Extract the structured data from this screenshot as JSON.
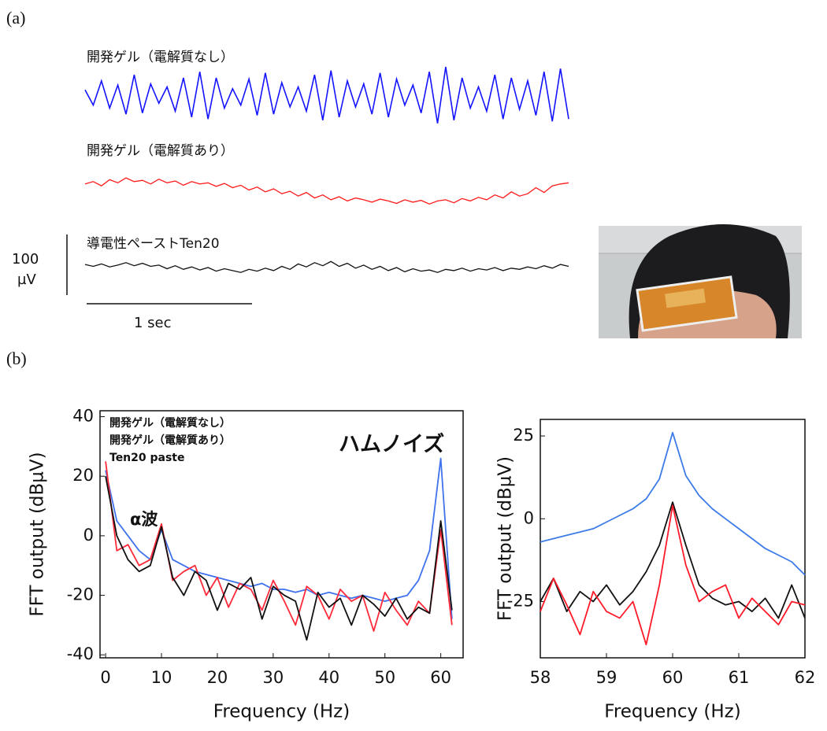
{
  "chart_data": [
    {
      "type": "trace",
      "panel_label": "(a)",
      "series": [
        {
          "name": "開発ゲル（電解質なし）",
          "color": "#1414ff",
          "values": [
            10,
            -15,
            25,
            -20,
            18,
            -30,
            35,
            -28,
            20,
            -12,
            15,
            -25,
            30,
            -35,
            40,
            -38,
            30,
            -20,
            12,
            -15,
            28,
            -32,
            38,
            -30,
            22,
            -18,
            15,
            -25,
            35,
            -40,
            42,
            -35,
            25,
            -18,
            20,
            -30,
            38,
            -35,
            28,
            -15,
            18,
            -28,
            40,
            -45,
            48,
            -40,
            30,
            -20,
            15,
            -25,
            35,
            -38,
            30,
            -22,
            25,
            -32,
            40,
            -42,
            45,
            -38
          ]
        },
        {
          "name": "開発ゲル（電解質あり）",
          "color": "#ff1a1a",
          "values": [
            8,
            12,
            5,
            15,
            10,
            18,
            12,
            14,
            8,
            16,
            10,
            13,
            6,
            12,
            8,
            10,
            4,
            9,
            2,
            6,
            -2,
            3,
            -5,
            0,
            -8,
            -4,
            -12,
            -6,
            -15,
            -10,
            -18,
            -13,
            -20,
            -15,
            -18,
            -22,
            -17,
            -20,
            -24,
            -18,
            -22,
            -19,
            -25,
            -20,
            -18,
            -23,
            -16,
            -20,
            -14,
            -18,
            -10,
            -15,
            -5,
            -12,
            -8,
            2,
            -6,
            5,
            8,
            10
          ]
        },
        {
          "name": "導電性ペーストTen20",
          "color": "#111111",
          "values": [
            5,
            2,
            6,
            1,
            4,
            8,
            3,
            7,
            2,
            4,
            -2,
            3,
            -3,
            1,
            -4,
            0,
            -6,
            -2,
            -5,
            -8,
            -3,
            -6,
            -1,
            -5,
            2,
            -3,
            6,
            1,
            8,
            3,
            10,
            2,
            7,
            -1,
            4,
            -3,
            2,
            -5,
            0,
            -7,
            -2,
            -6,
            -4,
            -8,
            -3,
            -5,
            -1,
            -6,
            -2,
            -4,
            0,
            -5,
            -1,
            -3,
            1,
            -2,
            3,
            -1,
            5,
            2
          ]
        }
      ],
      "scale_bar": {
        "y_value": 100,
        "y_unit": "µV",
        "x_label": "1 sec"
      }
    },
    {
      "type": "line",
      "panel_label": "(b)",
      "xlabel": "Frequency (Hz)",
      "ylabel": "FFT output (dBµV)",
      "x": [
        0,
        2,
        4,
        6,
        8,
        10,
        12,
        14,
        16,
        18,
        20,
        22,
        24,
        26,
        28,
        30,
        32,
        34,
        36,
        38,
        40,
        42,
        44,
        46,
        48,
        50,
        52,
        54,
        56,
        58,
        60,
        62
      ],
      "xlim": [
        -1,
        64
      ],
      "xticks": [
        0,
        10,
        20,
        30,
        40,
        50,
        60
      ],
      "ylim": [
        -41,
        42
      ],
      "yticks": [
        -40,
        -20,
        0,
        20,
        40
      ],
      "legend": "upper left",
      "annotations": [
        "ハムノイズ",
        "α波"
      ],
      "series": [
        {
          "name": "開発ゲル（電解質なし）",
          "color": "#3f72ee",
          "values": [
            22,
            5,
            0,
            -5,
            -8,
            2,
            -8,
            -10,
            -12,
            -13,
            -14,
            -15,
            -16,
            -17,
            -16,
            -18,
            -18,
            -19,
            -18,
            -20,
            -19,
            -20,
            -21,
            -20,
            -21,
            -22,
            -21,
            -20,
            -15,
            -5,
            26,
            -28
          ]
        },
        {
          "name": "開発ゲル（電解質あり）",
          "color": "#ff2a3a",
          "values": [
            25,
            -5,
            -3,
            -10,
            -8,
            4,
            -15,
            -12,
            -10,
            -20,
            -14,
            -24,
            -16,
            -18,
            -25,
            -15,
            -22,
            -30,
            -17,
            -20,
            -28,
            -18,
            -22,
            -20,
            -32,
            -19,
            -25,
            -30,
            -22,
            -26,
            2,
            -30
          ]
        },
        {
          "name": "Ten20 paste",
          "color": "#111111",
          "values": [
            20,
            0,
            -8,
            -12,
            -10,
            3,
            -14,
            -20,
            -12,
            -15,
            -25,
            -16,
            -18,
            -14,
            -28,
            -17,
            -20,
            -22,
            -35,
            -19,
            -24,
            -21,
            -30,
            -20,
            -23,
            -27,
            -21,
            -28,
            -24,
            -26,
            5,
            -25
          ]
        }
      ]
    },
    {
      "type": "line",
      "xlabel": "Frequency (Hz)",
      "ylabel": "FFT output (dBµV)",
      "x": [
        58,
        58.2,
        58.4,
        58.6,
        58.8,
        59,
        59.2,
        59.4,
        59.6,
        59.8,
        60,
        60.2,
        60.4,
        60.6,
        60.8,
        61,
        61.2,
        61.4,
        61.6,
        61.8,
        62
      ],
      "xlim": [
        58,
        62
      ],
      "xticks": [
        58,
        59,
        60,
        61,
        62
      ],
      "ylim": [
        -42,
        30
      ],
      "yticks": [
        -25,
        0,
        25
      ],
      "series": [
        {
          "color": "#3d7be8",
          "values": [
            -7,
            -6,
            -5,
            -4,
            -3,
            -1,
            1,
            3,
            6,
            12,
            26,
            13,
            7,
            3,
            0,
            -3,
            -6,
            -9,
            -11,
            -13,
            -17
          ]
        },
        {
          "color": "#111111",
          "values": [
            -25,
            -18,
            -28,
            -22,
            -25,
            -20,
            -26,
            -22,
            -16,
            -8,
            5,
            -8,
            -20,
            -24,
            -26,
            -25,
            -28,
            -24,
            -30,
            -20,
            -30
          ]
        },
        {
          "color": "#ff1a2a",
          "values": [
            -28,
            -18,
            -26,
            -35,
            -22,
            -28,
            -30,
            -25,
            -38,
            -20,
            4,
            -14,
            -25,
            -22,
            -20,
            -30,
            -24,
            -28,
            -32,
            -25,
            -26
          ]
        }
      ]
    }
  ]
}
